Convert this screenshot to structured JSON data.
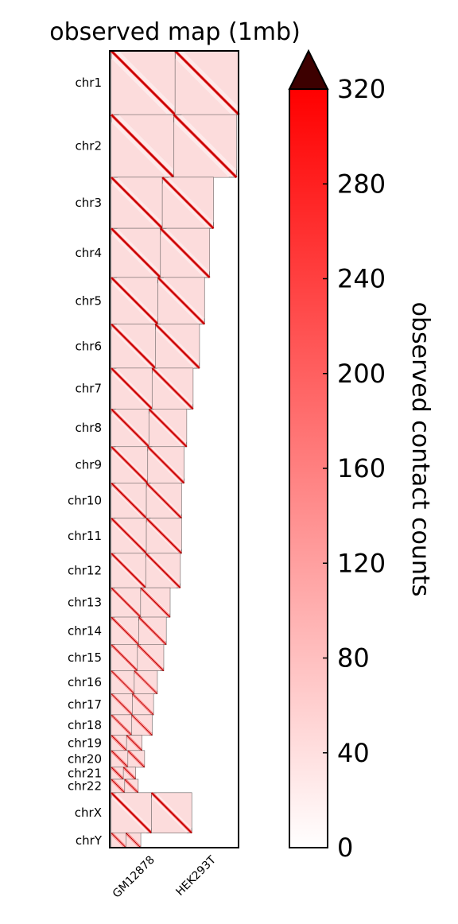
{
  "chart_data": {
    "type": "heatmap",
    "title": "observed map (1mb)",
    "x_tick_labels": [
      "GM12878",
      "HEK293T"
    ],
    "chromosomes": [
      {
        "name": "chr1",
        "rel": 1.0
      },
      {
        "name": "chr2",
        "rel": 0.98
      },
      {
        "name": "chr3",
        "rel": 0.8
      },
      {
        "name": "chr4",
        "rel": 0.77
      },
      {
        "name": "chr5",
        "rel": 0.73
      },
      {
        "name": "chr6",
        "rel": 0.69
      },
      {
        "name": "chr7",
        "rel": 0.64
      },
      {
        "name": "chr8",
        "rel": 0.59
      },
      {
        "name": "chr9",
        "rel": 0.57
      },
      {
        "name": "chr10",
        "rel": 0.55
      },
      {
        "name": "chr11",
        "rel": 0.55
      },
      {
        "name": "chr12",
        "rel": 0.54
      },
      {
        "name": "chr13",
        "rel": 0.46
      },
      {
        "name": "chr14",
        "rel": 0.43
      },
      {
        "name": "chr15",
        "rel": 0.41
      },
      {
        "name": "chr16",
        "rel": 0.36
      },
      {
        "name": "chr17",
        "rel": 0.33
      },
      {
        "name": "chr18",
        "rel": 0.32
      },
      {
        "name": "chr19",
        "rel": 0.24
      },
      {
        "name": "chr20",
        "rel": 0.26
      },
      {
        "name": "chr21",
        "rel": 0.19
      },
      {
        "name": "chr22",
        "rel": 0.21
      },
      {
        "name": "chrX",
        "rel": 0.63
      },
      {
        "name": "chrY",
        "rel": 0.23
      }
    ],
    "colorbar": {
      "label": "observed contact counts",
      "min": 0,
      "max": 320,
      "ticks": [
        0,
        40,
        80,
        120,
        160,
        200,
        240,
        280,
        320
      ],
      "extend": "max",
      "color_low": "#ffffff",
      "color_high": "#ff0000",
      "color_over": "#3d0000"
    }
  }
}
